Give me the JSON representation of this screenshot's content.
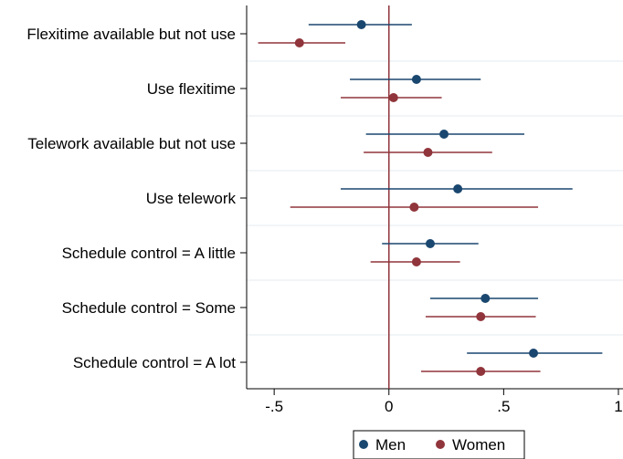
{
  "chart_data": {
    "type": "dot-whisker",
    "orientation": "horizontal",
    "categories": [
      "Flexitime available but not use",
      "Use flexitime",
      "Telework available but not use",
      "Use telework",
      "Schedule control = A little",
      "Schedule control = Some",
      "Schedule control = A lot"
    ],
    "x_ticks": [
      -0.5,
      0,
      0.5,
      1
    ],
    "x_tick_labels": [
      "-.5",
      "0",
      ".5",
      "1"
    ],
    "xlim": [
      -0.62,
      1.02
    ],
    "reference_line_x": 0,
    "grid": "horizontal-light",
    "legend_position": "bottom",
    "series": [
      {
        "name": "Men",
        "color": "#1a476f",
        "estimates": [
          -0.12,
          0.12,
          0.24,
          0.3,
          0.18,
          0.42,
          0.63
        ],
        "ci_low": [
          -0.35,
          -0.17,
          -0.1,
          -0.21,
          -0.03,
          0.18,
          0.34
        ],
        "ci_high": [
          0.1,
          0.4,
          0.59,
          0.8,
          0.39,
          0.65,
          0.93
        ]
      },
      {
        "name": "Women",
        "color": "#90353b",
        "estimates": [
          -0.39,
          0.02,
          0.17,
          0.11,
          0.12,
          0.4,
          0.4
        ],
        "ci_low": [
          -0.57,
          -0.21,
          -0.11,
          -0.43,
          -0.08,
          0.16,
          0.14
        ],
        "ci_high": [
          -0.19,
          0.23,
          0.45,
          0.65,
          0.31,
          0.64,
          0.66
        ]
      }
    ]
  }
}
